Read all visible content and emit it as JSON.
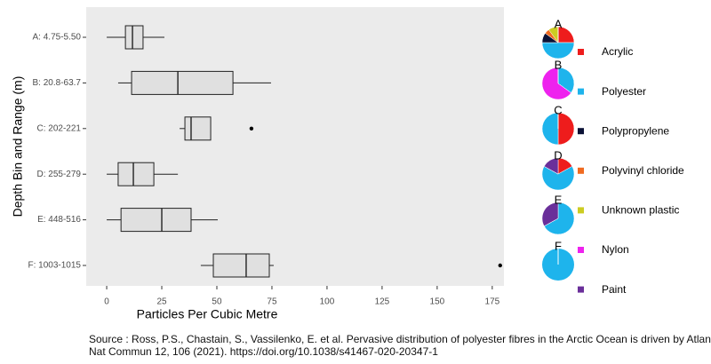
{
  "chart_data": {
    "type": "boxplot",
    "x_label": "Particles Per Cubic Metre",
    "y_label": "Depth Bin and Range (m)",
    "categories": [
      "A: 4.75-5.50",
      "B: 20.8-63.7",
      "C: 202-221",
      "D: 255-279",
      "E: 448-516",
      "F: 1003-1015"
    ],
    "boxes": [
      {
        "low": 0,
        "q1": 8.5,
        "median": 11.7,
        "q3": 16.5,
        "high": 26.2,
        "outliers": []
      },
      {
        "low": 5.2,
        "q1": 11.3,
        "median": 32.3,
        "q3": 57.3,
        "high": 74.6,
        "outliers": []
      },
      {
        "low": 33.1,
        "q1": 35.5,
        "median": 38.3,
        "q3": 47.2,
        "high": 47.2,
        "outliers": [
          65.7
        ]
      },
      {
        "low": 0,
        "q1": 5.2,
        "median": 12.1,
        "q3": 21.4,
        "high": 32.3,
        "outliers": []
      },
      {
        "low": 0,
        "q1": 6.5,
        "median": 25,
        "q3": 38.3,
        "high": 50.4,
        "outliers": []
      },
      {
        "low": 42.7,
        "q1": 48.4,
        "median": 63.3,
        "q3": 73.8,
        "high": 75.8,
        "outliers": [
          178.6
        ]
      }
    ],
    "color": "#e0e0e0",
    "background": "#ebebeb",
    "xlim": [
      -9.3,
      180.3
    ],
    "xticks": [
      0,
      25,
      50,
      75,
      100,
      125,
      150,
      175
    ],
    "pies": {
      "type": "pie",
      "materials": [
        {
          "name": "Acrylic",
          "color": "#ee1c1c"
        },
        {
          "name": "Polyester",
          "color": "#1eb4ec"
        },
        {
          "name": "Polypropylene",
          "color": "#0b1236"
        },
        {
          "name": "Polyvinyl chloride",
          "color": "#f06a20"
        },
        {
          "name": "Unknown plastic",
          "color": "#cccc22"
        },
        {
          "name": "Nylon",
          "color": "#ee22ee"
        },
        {
          "name": "Paint",
          "color": "#6a2f9a"
        }
      ],
      "charts": [
        {
          "label": "A",
          "values": [
            25,
            50,
            10,
            5,
            10,
            0,
            0
          ]
        },
        {
          "label": "B",
          "values": [
            0,
            35,
            0,
            0,
            0,
            65,
            0
          ]
        },
        {
          "label": "C",
          "values": [
            50,
            50,
            0,
            0,
            0,
            0,
            0
          ]
        },
        {
          "label": "D",
          "values": [
            17,
            66,
            0,
            0,
            0,
            0,
            17
          ]
        },
        {
          "label": "E",
          "values": [
            0,
            67,
            0,
            0,
            0,
            0,
            33
          ]
        },
        {
          "label": "F",
          "values": [
            0,
            100,
            0,
            0,
            0,
            0,
            0
          ]
        }
      ]
    },
    "source": [
      "Source : Ross, P.S., Chastain, S., Vassilenko, E. et al. Pervasive distribution of polyester fibres in the Arctic Ocean is driven by Atlantic inputs.",
      "Nat Commun 12, 106   (2021).  https://doi.org/10.1038/s41467-020-20347-1"
    ]
  }
}
